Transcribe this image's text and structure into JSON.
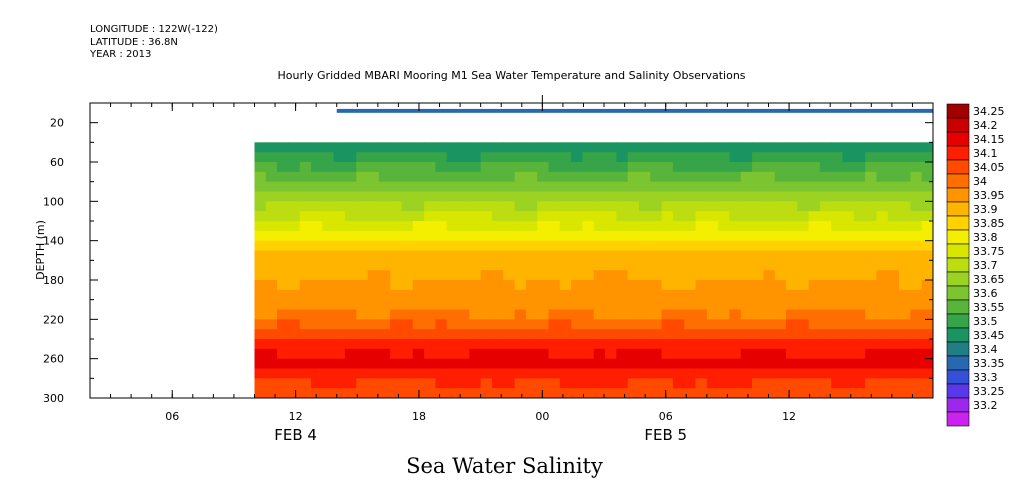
{
  "header": {
    "longitude": "LONGITUDE : 122W(-122)",
    "latitude": "LATITUDE : 36.8N",
    "year": "YEAR : 2013"
  },
  "chart_data": {
    "type": "heatmap",
    "title": "Hourly Gridded MBARI Mooring M1 Sea Water Temperature and Salinity Observations",
    "figure_title": "Sea Water Salinity",
    "ylabel": "DEPTH (m)",
    "y_axis_inverted": true,
    "ylim": [
      0,
      300
    ],
    "yticks": [
      20,
      60,
      100,
      140,
      180,
      220,
      260,
      300
    ],
    "x_start": "2013-02-04T02:00",
    "x_end": "2013-02-05T19:00",
    "xticks": [
      {
        "label": "06",
        "t": "2013-02-04T06:00"
      },
      {
        "label": "12",
        "t": "2013-02-04T12:00"
      },
      {
        "label": "18",
        "t": "2013-02-04T18:00"
      },
      {
        "label": "00",
        "t": "2013-02-05T00:00"
      },
      {
        "label": "06",
        "t": "2013-02-05T06:00"
      },
      {
        "label": "12",
        "t": "2013-02-05T12:00"
      }
    ],
    "date_labels": [
      {
        "label": "FEB  4",
        "t": "2013-02-04T12:00"
      },
      {
        "label": "FEB  5",
        "t": "2013-02-05T06:00"
      }
    ],
    "data_start": "2013-02-04T10:00",
    "near_surface_start": "2013-02-04T14:00",
    "near_surface_depth": [
      6,
      10
    ],
    "near_surface_value": 33.4,
    "grid": false,
    "colorbar": {
      "levels": [
        "34.25",
        "34.2",
        "34.15",
        "34.1",
        "34.05",
        "34",
        "33.95",
        "33.9",
        "33.85",
        "33.8",
        "33.75",
        "33.7",
        "33.65",
        "33.6",
        "33.55",
        "33.5",
        "33.45",
        "33.4",
        "33.35",
        "33.3",
        "33.25",
        "33.2"
      ],
      "colors": [
        "#a00000",
        "#c80000",
        "#e60000",
        "#ff1e00",
        "#ff4a00",
        "#ff6e00",
        "#ff9400",
        "#ffb400",
        "#ffd200",
        "#f4ee00",
        "#d8e600",
        "#bcde10",
        "#9cd222",
        "#7cc430",
        "#58b43a",
        "#36a448",
        "#1a9460",
        "#1f7f84",
        "#2868b0",
        "#3450d6",
        "#5838e8",
        "#9c28ec",
        "#cc22f0"
      ]
    },
    "profile": {
      "depths": [
        40,
        50,
        60,
        70,
        80,
        90,
        100,
        110,
        120,
        130,
        140,
        150,
        160,
        170,
        180,
        190,
        200,
        210,
        220,
        230,
        240,
        250,
        260,
        270,
        280,
        290,
        300
      ],
      "values": [
        33.52,
        33.56,
        33.6,
        33.64,
        33.68,
        33.72,
        33.76,
        33.8,
        33.84,
        33.87,
        33.92,
        33.97,
        33.98,
        33.99,
        34.01,
        34.02,
        34.03,
        34.05,
        34.09,
        34.13,
        34.17,
        34.2,
        34.22,
        34.18,
        34.15,
        34.13,
        34.12
      ]
    }
  }
}
